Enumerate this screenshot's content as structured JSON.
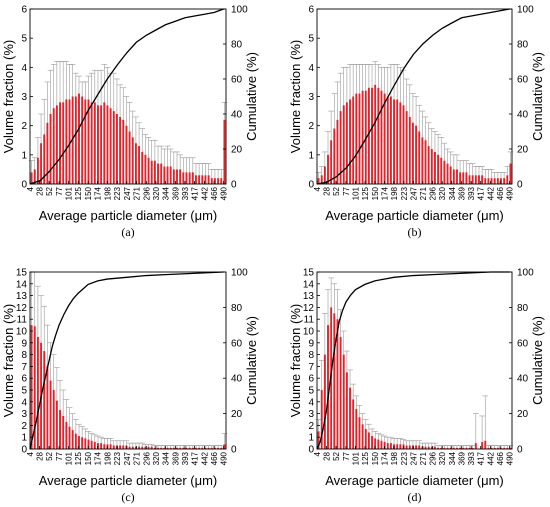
{
  "chart_data": [
    {
      "panel_label": "(a)",
      "type": "bar",
      "xlabel": "Average particle diameter (μm)",
      "ylabel": "Volume fraction (%)",
      "y2label": "Cumulative (%)",
      "ylim": [
        0,
        6
      ],
      "y2lim": [
        0,
        100
      ],
      "yticks": [
        0,
        1,
        2,
        3,
        4,
        5,
        6
      ],
      "y2ticks": [
        0,
        20,
        40,
        60,
        80,
        100
      ],
      "xtick_labels": [
        "4",
        "28",
        "52",
        "77",
        "101",
        "125",
        "150",
        "174",
        "198",
        "223",
        "247",
        "271",
        "296",
        "320",
        "344",
        "369",
        "393",
        "417",
        "442",
        "466",
        "490"
      ],
      "values": [
        0.4,
        0.5,
        0.9,
        1.4,
        1.7,
        2.1,
        2.4,
        2.6,
        2.7,
        2.8,
        2.8,
        2.9,
        2.9,
        3.0,
        3.0,
        3.1,
        3.0,
        2.9,
        2.9,
        2.8,
        2.8,
        2.7,
        2.7,
        2.8,
        2.7,
        2.6,
        2.5,
        2.4,
        2.3,
        2.2,
        2.0,
        1.8,
        1.6,
        1.4,
        1.3,
        1.1,
        1.0,
        0.9,
        0.8,
        0.8,
        0.7,
        0.7,
        0.6,
        0.6,
        0.6,
        0.5,
        0.5,
        0.5,
        0.4,
        0.4,
        0.4,
        0.4,
        0.3,
        0.3,
        0.3,
        0.3,
        0.3,
        0.2,
        0.2,
        0.2,
        0.2,
        2.2
      ],
      "errors": [
        0.4,
        0.4,
        0.7,
        1.0,
        1.2,
        1.4,
        1.5,
        1.5,
        1.5,
        1.4,
        1.4,
        1.3,
        1.2,
        1.1,
        0.8,
        0.6,
        0.5,
        0.6,
        0.8,
        1.0,
        1.1,
        1.2,
        1.2,
        1.3,
        1.3,
        1.2,
        1.3,
        1.2,
        1.1,
        1.1,
        1.0,
        1.0,
        0.9,
        0.9,
        0.8,
        0.8,
        0.7,
        0.7,
        0.7,
        0.7,
        0.6,
        0.6,
        0.6,
        0.7,
        0.6,
        0.6,
        0.6,
        0.5,
        0.5,
        0.5,
        0.5,
        0.5,
        0.4,
        0.4,
        0.4,
        0.4,
        0.4,
        0.3,
        0.3,
        0.3,
        0.3,
        0.6
      ],
      "cumulative_x": [
        4,
        30,
        52,
        77,
        101,
        125,
        150,
        174,
        198,
        223,
        247,
        271,
        296,
        320,
        344,
        369,
        393,
        417,
        442,
        466,
        490
      ],
      "cumulative_y": [
        0,
        2,
        7,
        14,
        22,
        31,
        42,
        51,
        60,
        68,
        75,
        81,
        85,
        88,
        91,
        93,
        95,
        96,
        97,
        98,
        100
      ]
    },
    {
      "panel_label": "(b)",
      "type": "bar",
      "xlabel": "Average particle diameter (μm)",
      "ylabel": "Volume fraction (%)",
      "y2label": "Cumulative (%)",
      "ylim": [
        0,
        6
      ],
      "y2lim": [
        0,
        100
      ],
      "yticks": [
        0,
        1,
        2,
        3,
        4,
        5,
        6
      ],
      "y2ticks": [
        0,
        20,
        40,
        60,
        80,
        100
      ],
      "xtick_labels": [
        "4",
        "28",
        "52",
        "77",
        "101",
        "125",
        "150",
        "174",
        "198",
        "223",
        "247",
        "271",
        "296",
        "320",
        "344",
        "369",
        "393",
        "417",
        "442",
        "466",
        "490"
      ],
      "values": [
        0.2,
        0.3,
        0.6,
        1.0,
        1.5,
        1.9,
        2.2,
        2.5,
        2.7,
        2.8,
        2.9,
        3.0,
        3.1,
        3.1,
        3.2,
        3.2,
        3.3,
        3.3,
        3.4,
        3.3,
        3.2,
        3.1,
        3.0,
        3.0,
        2.9,
        2.9,
        2.8,
        2.7,
        2.5,
        2.3,
        2.1,
        2.0,
        1.8,
        1.6,
        1.5,
        1.3,
        1.2,
        1.1,
        1.0,
        0.9,
        0.8,
        0.7,
        0.6,
        0.5,
        0.5,
        0.4,
        0.4,
        0.4,
        0.3,
        0.3,
        0.3,
        0.3,
        0.3,
        0.2,
        0.2,
        0.2,
        0.2,
        0.2,
        0.2,
        0.2,
        0.3,
        0.7
      ],
      "errors": [
        0.2,
        0.3,
        0.5,
        0.8,
        1.0,
        1.2,
        1.3,
        1.3,
        1.3,
        1.2,
        1.2,
        1.1,
        1.0,
        1.0,
        0.9,
        0.9,
        0.8,
        0.8,
        0.8,
        0.8,
        0.8,
        0.9,
        1.0,
        1.1,
        1.2,
        1.2,
        1.2,
        1.2,
        1.1,
        1.1,
        1.0,
        1.0,
        0.9,
        0.9,
        0.8,
        0.8,
        0.7,
        0.7,
        0.7,
        0.7,
        0.6,
        0.5,
        0.5,
        0.5,
        0.5,
        0.4,
        0.4,
        0.4,
        0.4,
        0.4,
        0.3,
        0.3,
        0.3,
        0.3,
        0.3,
        0.3,
        0.2,
        0.2,
        0.2,
        0.2,
        0.3,
        0.4
      ],
      "cumulative_x": [
        4,
        28,
        52,
        77,
        101,
        125,
        150,
        174,
        198,
        223,
        247,
        271,
        296,
        320,
        344,
        369,
        393,
        417,
        442,
        466,
        490
      ],
      "cumulative_y": [
        0,
        1,
        4,
        9,
        16,
        25,
        35,
        46,
        56,
        66,
        74,
        80,
        85,
        89,
        92,
        95,
        96,
        97,
        98,
        99,
        100
      ]
    },
    {
      "panel_label": "(c)",
      "type": "bar",
      "xlabel": "Average particle diameter (μm)",
      "ylabel": "Volume fraction (%)",
      "y2label": "Cumulative (%)",
      "ylim": [
        0,
        15
      ],
      "y2lim": [
        0,
        100
      ],
      "yticks": [
        0,
        1,
        2,
        3,
        4,
        5,
        6,
        7,
        8,
        9,
        10,
        11,
        12,
        13,
        14,
        15
      ],
      "y2ticks": [
        0,
        20,
        40,
        60,
        80,
        100
      ],
      "xtick_labels": [
        "4",
        "28",
        "52",
        "77",
        "101",
        "125",
        "150",
        "174",
        "198",
        "223",
        "247",
        "271",
        "296",
        "320",
        "344",
        "369",
        "393",
        "417",
        "442",
        "466",
        "490"
      ],
      "values": [
        10.5,
        10.4,
        9.5,
        9.0,
        8.3,
        7.0,
        5.8,
        5.0,
        4.1,
        3.3,
        2.8,
        2.3,
        1.9,
        1.6,
        1.3,
        1.1,
        1.0,
        0.9,
        0.8,
        0.7,
        0.6,
        0.5,
        0.5,
        0.4,
        0.4,
        0.4,
        0.3,
        0.3,
        0.3,
        0.3,
        0.3,
        0.2,
        0.2,
        0.2,
        0.2,
        0.2,
        0.2,
        0.2,
        0.2,
        0.1,
        0.1,
        0.1,
        0.1,
        0.1,
        0.1,
        0.1,
        0.1,
        0.1,
        0.1,
        0.1,
        0.1,
        0.1,
        0.1,
        0.1,
        0.1,
        0.1,
        0.1,
        0.1,
        0.1,
        0.1,
        0.1,
        0.4
      ],
      "errors": [
        4.5,
        4.6,
        4.3,
        4.0,
        3.8,
        3.5,
        3.2,
        3.0,
        2.8,
        2.5,
        2.2,
        1.9,
        1.6,
        1.4,
        1.2,
        1.0,
        0.9,
        0.8,
        0.7,
        0.6,
        0.6,
        0.6,
        0.5,
        0.5,
        0.5,
        0.5,
        0.4,
        0.4,
        0.4,
        0.4,
        0.4,
        0.3,
        0.3,
        0.3,
        0.3,
        0.3,
        0.2,
        0.2,
        0.2,
        0.2,
        0.2,
        0.2,
        0.2,
        0.2,
        0.2,
        0.2,
        0.2,
        0.2,
        0.2,
        0.2,
        0.2,
        0.2,
        0.2,
        0.2,
        0.2,
        0.2,
        0.2,
        0.2,
        0.2,
        0.2,
        0.2,
        0.9
      ],
      "cumulative_x": [
        4,
        12,
        20,
        28,
        36,
        44,
        52,
        60,
        68,
        77,
        89,
        101,
        113,
        125,
        150,
        174,
        198,
        247,
        296,
        344,
        393,
        442,
        490
      ],
      "cumulative_y": [
        0,
        8,
        16,
        25,
        34,
        42,
        50,
        58,
        64,
        70,
        76,
        81,
        85,
        88,
        93,
        95,
        96,
        97,
        98,
        98.5,
        99,
        99.5,
        100
      ]
    },
    {
      "panel_label": "(d)",
      "type": "bar",
      "xlabel": "Average particle diameter (μm)",
      "ylabel": "Volume fraction (%)",
      "y2label": "Cumulative (%)",
      "ylim": [
        0,
        15
      ],
      "y2lim": [
        0,
        100
      ],
      "yticks": [
        0,
        1,
        2,
        3,
        4,
        5,
        6,
        7,
        8,
        9,
        10,
        11,
        12,
        13,
        14,
        15
      ],
      "y2ticks": [
        0,
        20,
        40,
        60,
        80,
        100
      ],
      "xtick_labels": [
        "4",
        "28",
        "52",
        "77",
        "101",
        "125",
        "150",
        "174",
        "198",
        "223",
        "247",
        "271",
        "296",
        "320",
        "344",
        "369",
        "393",
        "417",
        "442",
        "466",
        "490"
      ],
      "values": [
        1.5,
        5.0,
        8.0,
        10.5,
        12.0,
        11.5,
        11.0,
        9.5,
        8.0,
        6.5,
        5.2,
        4.2,
        3.4,
        2.7,
        2.1,
        1.7,
        1.4,
        1.1,
        0.9,
        0.8,
        0.7,
        0.6,
        0.5,
        0.5,
        0.4,
        0.4,
        0.4,
        0.4,
        0.3,
        0.3,
        0.3,
        0.3,
        0.3,
        0.2,
        0.2,
        0.2,
        0.2,
        0.2,
        0.1,
        0.1,
        0.1,
        0.1,
        0.1,
        0.1,
        0.1,
        0.1,
        0.1,
        0.1,
        0.1,
        0.1,
        0.5,
        0.0,
        0.6,
        0.7,
        0.1,
        0.1,
        0.1,
        0.1,
        0.1,
        0.1,
        0.1,
        0.1
      ],
      "errors": [
        1.0,
        2.5,
        3.5,
        3.0,
        2.5,
        2.5,
        2.5,
        2.3,
        2.0,
        1.8,
        1.5,
        1.3,
        1.1,
        1.0,
        0.9,
        0.8,
        0.7,
        0.6,
        0.6,
        0.5,
        0.5,
        0.5,
        0.5,
        0.5,
        0.5,
        0.5,
        0.5,
        0.4,
        0.4,
        0.4,
        0.4,
        0.4,
        0.4,
        0.3,
        0.3,
        0.3,
        0.3,
        0.3,
        0.2,
        0.2,
        0.2,
        0.2,
        0.2,
        0.2,
        0.2,
        0.2,
        0.2,
        0.2,
        0.2,
        0.2,
        2.5,
        0.0,
        2.2,
        3.8,
        0.2,
        0.2,
        0.2,
        0.2,
        0.2,
        0.2,
        0.2,
        0.2
      ],
      "cumulative_x": [
        4,
        12,
        20,
        28,
        36,
        44,
        52,
        60,
        68,
        77,
        89,
        101,
        125,
        150,
        174,
        198,
        247,
        296,
        344,
        393,
        442,
        490
      ],
      "cumulative_y": [
        0,
        4,
        12,
        22,
        36,
        50,
        62,
        72,
        78,
        83,
        87,
        90,
        93,
        95,
        96,
        97,
        98,
        98.5,
        99,
        99.5,
        100,
        100
      ]
    }
  ]
}
